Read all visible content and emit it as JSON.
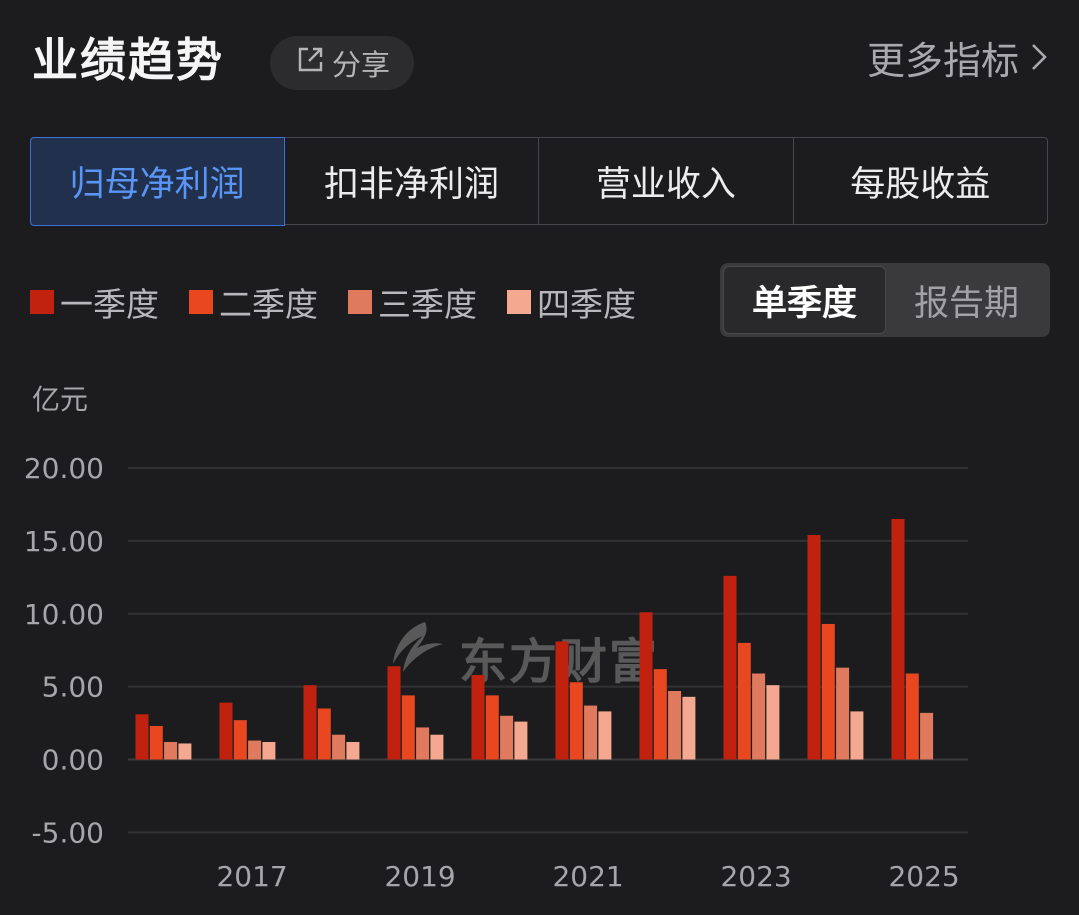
{
  "header": {
    "title": "业绩趋势",
    "share_label": "分享",
    "more_label": "更多指标"
  },
  "tabs": [
    {
      "label": "归母净利润",
      "active": true
    },
    {
      "label": "扣非净利润",
      "active": false
    },
    {
      "label": "营业收入",
      "active": false
    },
    {
      "label": "每股收益",
      "active": false
    }
  ],
  "period_toggle": {
    "single_quarter": "单季度",
    "report_period": "报告期"
  },
  "watermark": "东方财富",
  "colors": {
    "accent": "#3f6fd8",
    "q1": "#c0220f",
    "q2": "#e8471f",
    "q3": "#e07a5f",
    "q4": "#f4a890"
  },
  "chart_data": {
    "type": "bar",
    "unit": "亿元",
    "categories": [
      "2016",
      "2017",
      "2018",
      "2019",
      "2020",
      "2021",
      "2022",
      "2023",
      "2024",
      "2025"
    ],
    "x_tick_labels": [
      "2017",
      "2019",
      "2021",
      "2023",
      "2025"
    ],
    "y_ticks": [
      "20.00",
      "15.00",
      "10.00",
      "5.00",
      "0.00",
      "-5.00"
    ],
    "ylim": [
      -5,
      20
    ],
    "grid": true,
    "legend_position": "top-left",
    "series": [
      {
        "name": "一季度",
        "color": "#c0220f",
        "values": [
          3.1,
          3.9,
          5.1,
          6.4,
          5.8,
          8.1,
          10.1,
          12.6,
          15.4,
          16.5
        ]
      },
      {
        "name": "二季度",
        "color": "#e8471f",
        "values": [
          2.3,
          2.7,
          3.5,
          4.4,
          4.4,
          5.3,
          6.2,
          8.0,
          9.3,
          5.9
        ]
      },
      {
        "name": "三季度",
        "color": "#e07a5f",
        "values": [
          1.2,
          1.3,
          1.7,
          2.2,
          3.0,
          3.7,
          4.7,
          5.9,
          6.3,
          3.2
        ]
      },
      {
        "name": "四季度",
        "color": "#f4a890",
        "values": [
          1.1,
          1.2,
          1.2,
          1.7,
          2.6,
          3.3,
          4.3,
          5.1,
          3.3,
          null
        ]
      }
    ]
  }
}
